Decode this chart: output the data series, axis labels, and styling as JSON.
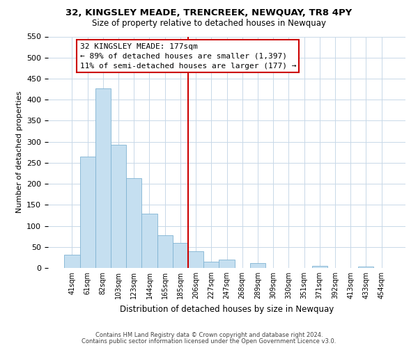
{
  "title": "32, KINGSLEY MEADE, TRENCREEK, NEWQUAY, TR8 4PY",
  "subtitle": "Size of property relative to detached houses in Newquay",
  "xlabel": "Distribution of detached houses by size in Newquay",
  "ylabel": "Number of detached properties",
  "bar_labels": [
    "41sqm",
    "61sqm",
    "82sqm",
    "103sqm",
    "123sqm",
    "144sqm",
    "165sqm",
    "185sqm",
    "206sqm",
    "227sqm",
    "247sqm",
    "268sqm",
    "289sqm",
    "309sqm",
    "330sqm",
    "351sqm",
    "371sqm",
    "392sqm",
    "413sqm",
    "433sqm",
    "454sqm"
  ],
  "bar_values": [
    32,
    265,
    427,
    292,
    214,
    129,
    78,
    60,
    40,
    15,
    20,
    0,
    11,
    0,
    0,
    0,
    5,
    0,
    0,
    4,
    0
  ],
  "bar_color": "#c5dff0",
  "bar_edge_color": "#7fb3d3",
  "vline_color": "#cc0000",
  "vline_position": 7.5,
  "ylim": [
    0,
    550
  ],
  "yticks": [
    0,
    50,
    100,
    150,
    200,
    250,
    300,
    350,
    400,
    450,
    500,
    550
  ],
  "annotation_title": "32 KINGSLEY MEADE: 177sqm",
  "annotation_line1": "← 89% of detached houses are smaller (1,397)",
  "annotation_line2": "11% of semi-detached houses are larger (177) →",
  "annotation_border_color": "#cc0000",
  "footer1": "Contains HM Land Registry data © Crown copyright and database right 2024.",
  "footer2": "Contains public sector information licensed under the Open Government Licence v3.0.",
  "bg_color": "#ffffff",
  "grid_color": "#c8d8e8",
  "title_fontsize": 9.5,
  "subtitle_fontsize": 8.5,
  "ylabel_fontsize": 8,
  "xlabel_fontsize": 8.5,
  "tick_fontsize": 8,
  "xtick_fontsize": 7
}
